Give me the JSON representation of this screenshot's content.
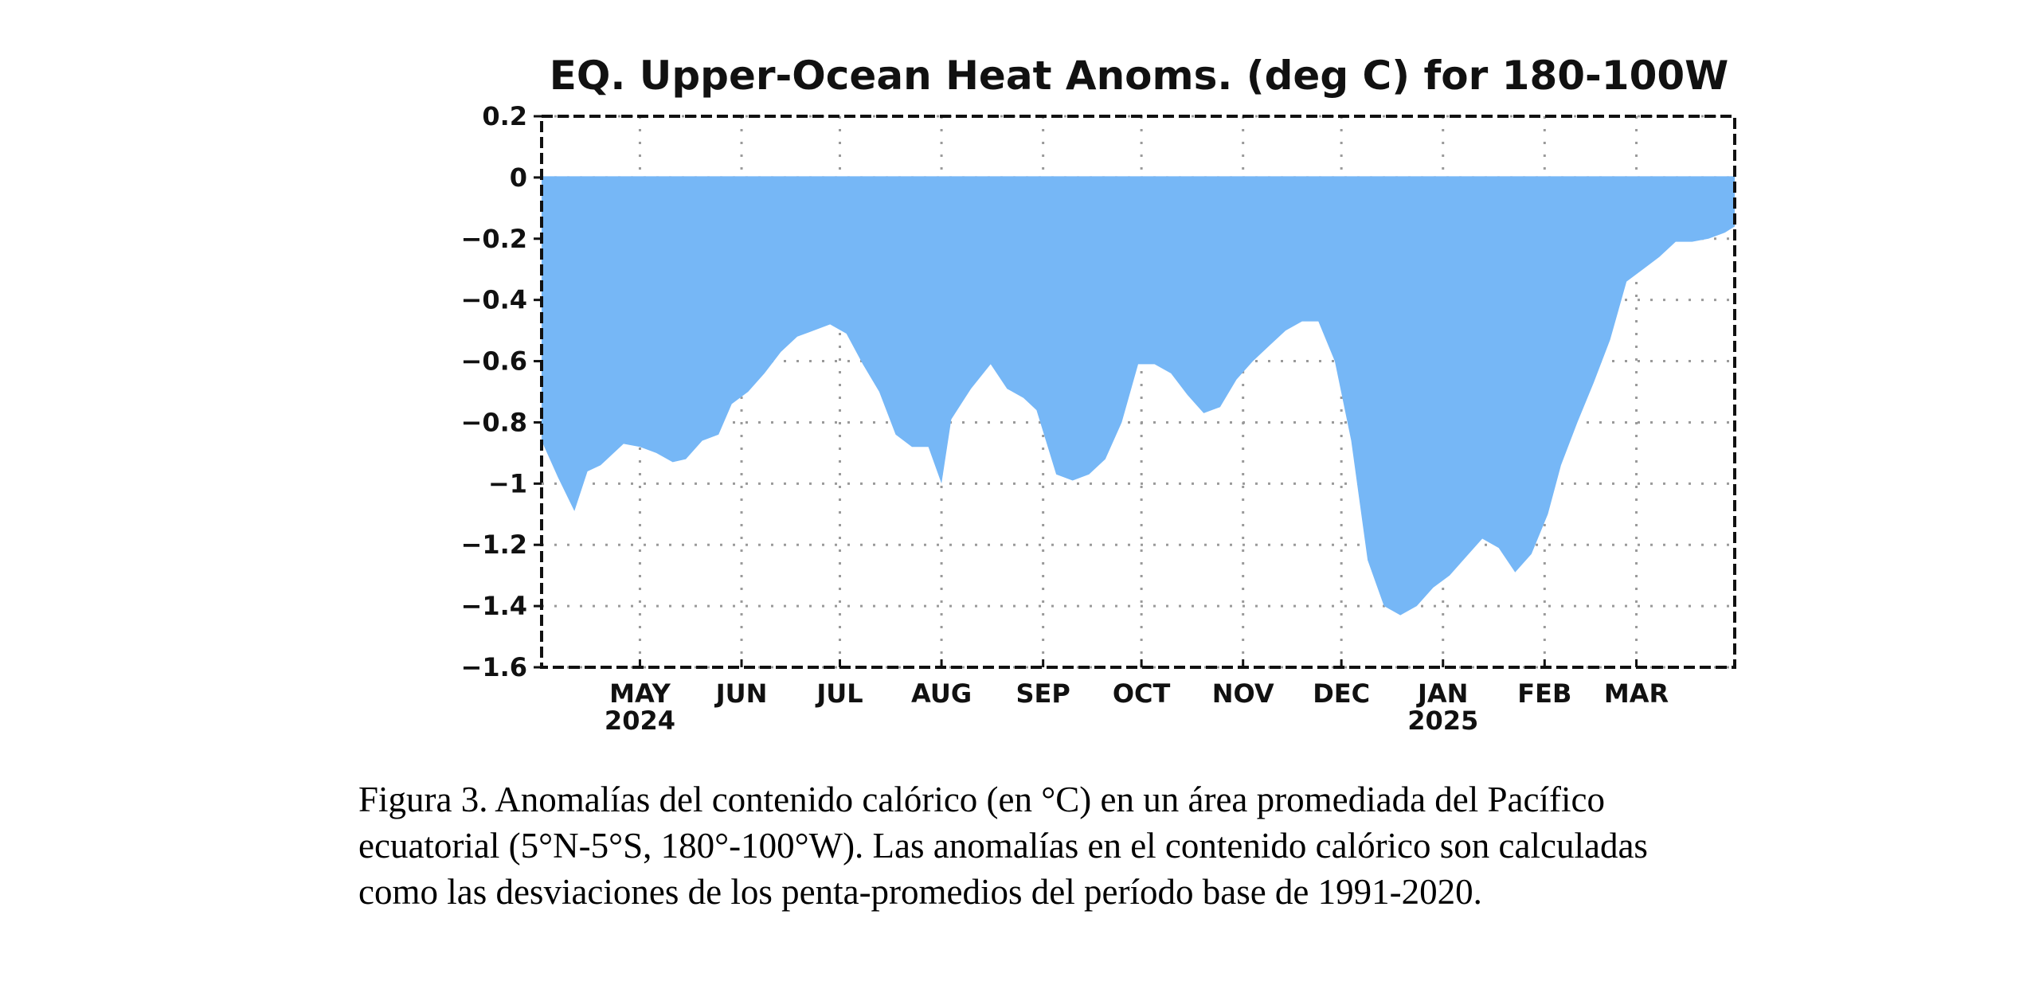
{
  "chart_data": {
    "type": "area",
    "title": "EQ. Upper-Ocean Heat Anoms. (deg C) for 180-100W",
    "xlabel": "",
    "ylabel": "",
    "ylim": [
      -1.6,
      0.2
    ],
    "y_ticks": [
      0.2,
      0,
      -0.2,
      -0.4,
      -0.6,
      -0.8,
      -1,
      -1.2,
      -1.4,
      -1.6
    ],
    "y_tick_labels": [
      "0.2",
      "0",
      "−0.2",
      "−0.4",
      "−0.6",
      "−0.8",
      "−1",
      "−1.2",
      "−1.4",
      "−1.6"
    ],
    "x_range": [
      "2024-04-01",
      "2025-03-31"
    ],
    "x_ticks": [
      {
        "date": "2024-05-01",
        "label": "MAY",
        "sublabel": "2024"
      },
      {
        "date": "2024-06-01",
        "label": "JUN",
        "sublabel": ""
      },
      {
        "date": "2024-07-01",
        "label": "JUL",
        "sublabel": ""
      },
      {
        "date": "2024-08-01",
        "label": "AUG",
        "sublabel": ""
      },
      {
        "date": "2024-09-01",
        "label": "SEP",
        "sublabel": ""
      },
      {
        "date": "2024-10-01",
        "label": "OCT",
        "sublabel": ""
      },
      {
        "date": "2024-11-01",
        "label": "NOV",
        "sublabel": ""
      },
      {
        "date": "2024-12-01",
        "label": "DEC",
        "sublabel": ""
      },
      {
        "date": "2025-01-01",
        "label": "JAN",
        "sublabel": "2025"
      },
      {
        "date": "2025-02-01",
        "label": "FEB",
        "sublabel": ""
      },
      {
        "date": "2025-03-01",
        "label": "MAR",
        "sublabel": ""
      }
    ],
    "grid": true,
    "fill_color": "#76b7f6",
    "series": [
      {
        "x": [
          "2024-04-01",
          "2024-04-06",
          "2024-04-11",
          "2024-04-15",
          "2024-04-19",
          "2024-04-26",
          "2024-05-01",
          "2024-05-06",
          "2024-05-11",
          "2024-05-15",
          "2024-05-20",
          "2024-05-25",
          "2024-05-29",
          "2024-06-03",
          "2024-06-08",
          "2024-06-13",
          "2024-06-18",
          "2024-06-23",
          "2024-06-28",
          "2024-07-03",
          "2024-07-08",
          "2024-07-13",
          "2024-07-18",
          "2024-07-23",
          "2024-07-28",
          "2024-08-01",
          "2024-08-04",
          "2024-08-10",
          "2024-08-16",
          "2024-08-21",
          "2024-08-26",
          "2024-08-30",
          "2024-09-05",
          "2024-09-10",
          "2024-09-15",
          "2024-09-20",
          "2024-09-25",
          "2024-09-30",
          "2024-10-05",
          "2024-10-10",
          "2024-10-15",
          "2024-10-20",
          "2024-10-25",
          "2024-10-30",
          "2024-11-04",
          "2024-11-09",
          "2024-11-14",
          "2024-11-19",
          "2024-11-24",
          "2024-11-29",
          "2024-12-04",
          "2024-12-09",
          "2024-12-14",
          "2024-12-19",
          "2024-12-24",
          "2024-12-29",
          "2025-01-03",
          "2025-01-08",
          "2025-01-13",
          "2025-01-18",
          "2025-01-23",
          "2025-01-28",
          "2025-02-02",
          "2025-02-06",
          "2025-02-11",
          "2025-02-16",
          "2025-02-21",
          "2025-02-26",
          "2025-03-03",
          "2025-03-08",
          "2025-03-13",
          "2025-03-18",
          "2025-03-23",
          "2025-03-28",
          "2025-03-31"
        ],
        "values": [
          -0.86,
          -0.98,
          -1.09,
          -0.96,
          -0.94,
          -0.87,
          -0.88,
          -0.9,
          -0.93,
          -0.92,
          -0.86,
          -0.84,
          -0.74,
          -0.7,
          -0.64,
          -0.57,
          -0.52,
          -0.5,
          -0.48,
          -0.51,
          -0.61,
          -0.7,
          -0.84,
          -0.88,
          -0.88,
          -1.0,
          -0.79,
          -0.69,
          -0.61,
          -0.69,
          -0.72,
          -0.76,
          -0.97,
          -0.99,
          -0.97,
          -0.92,
          -0.8,
          -0.61,
          -0.61,
          -0.64,
          -0.71,
          -0.77,
          -0.75,
          -0.66,
          -0.6,
          -0.55,
          -0.5,
          -0.47,
          -0.47,
          -0.6,
          -0.86,
          -1.25,
          -1.4,
          -1.43,
          -1.4,
          -1.34,
          -1.3,
          -1.24,
          -1.18,
          -1.21,
          -1.29,
          -1.23,
          -1.1,
          -0.94,
          -0.8,
          -0.67,
          -0.53,
          -0.34,
          -0.3,
          -0.26,
          -0.21,
          -0.21,
          -0.2,
          -0.18,
          -0.16
        ]
      }
    ]
  },
  "caption": {
    "line1": "Figura 3. Anomalías del contenido calórico (en °C) en un área promediada del Pacífico",
    "line2": "ecuatorial (5°N-5°S, 180°-100°W). Las anomalías en el contenido calórico son calculadas",
    "line3": "como las desviaciones de los penta-promedios del período base de 1991-2020."
  }
}
